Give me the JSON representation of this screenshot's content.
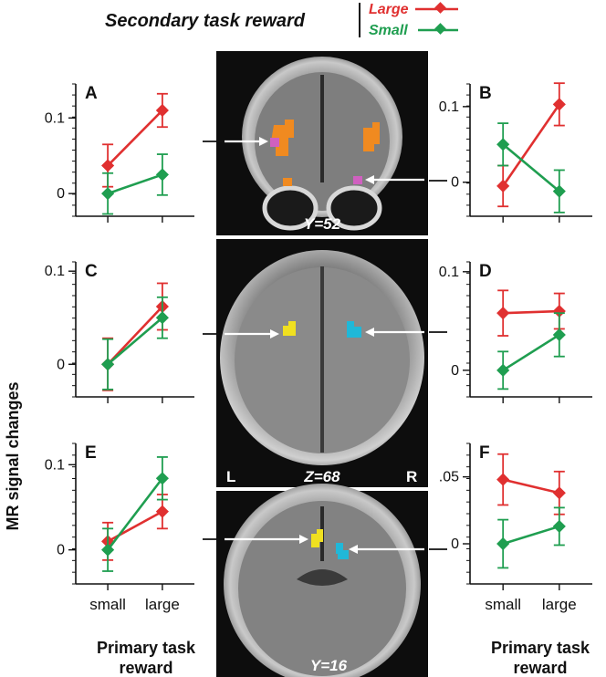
{
  "legend": {
    "title": "Secondary task reward",
    "entries": [
      {
        "name": "Large",
        "color": "#e03030"
      },
      {
        "name": "Small",
        "color": "#1f9e50"
      }
    ]
  },
  "y_axis_title": "MR signal changes",
  "x_axis_title": {
    "line1": "Primary task",
    "line2": "reward"
  },
  "categories": [
    "small",
    "large"
  ],
  "brain_slices": [
    {
      "label": "Y=52",
      "view": "coronal",
      "markers": [
        {
          "region": "left",
          "color": "#d060c0"
        },
        {
          "region": "right",
          "color": "#d060c0"
        }
      ],
      "clusters_color": "#f08a20"
    },
    {
      "label": "Z=68",
      "view": "axial",
      "left_label": "L",
      "right_label": "R",
      "markers": [
        {
          "region": "left",
          "color": "#f0e020"
        },
        {
          "region": "right",
          "color": "#20b8d8"
        }
      ]
    },
    {
      "label": "Y=16",
      "view": "coronal",
      "markers": [
        {
          "region": "left",
          "color": "#f0e020"
        },
        {
          "region": "right",
          "color": "#20b8d8"
        }
      ]
    }
  ],
  "chart_data": [
    {
      "panel": "A",
      "type": "line",
      "categories": [
        "small",
        "large"
      ],
      "ylim": [
        -0.03,
        0.145
      ],
      "ticks": [
        {
          "value": 0.1,
          "label": "0.1"
        },
        {
          "value": 0,
          "label": "0"
        }
      ],
      "series": [
        {
          "name": "Large",
          "color": "#e03030",
          "values": [
            0.037,
            0.11
          ],
          "errors": [
            0.028,
            0.022
          ]
        },
        {
          "name": "Small",
          "color": "#1f9e50",
          "values": [
            0.0,
            0.025
          ],
          "errors": [
            0.027,
            0.027
          ]
        }
      ]
    },
    {
      "panel": "B",
      "type": "line",
      "categories": [
        "small",
        "large"
      ],
      "ylim": [
        -0.045,
        0.13
      ],
      "ticks": [
        {
          "value": 0.1,
          "label": "0.1"
        },
        {
          "value": 0,
          "label": "0"
        }
      ],
      "series": [
        {
          "name": "Large",
          "color": "#e03030",
          "values": [
            -0.005,
            0.103
          ],
          "errors": [
            0.027,
            0.028
          ]
        },
        {
          "name": "Small",
          "color": "#1f9e50",
          "values": [
            0.05,
            -0.012
          ],
          "errors": [
            0.028,
            0.028
          ]
        }
      ]
    },
    {
      "panel": "C",
      "type": "line",
      "categories": [
        "small",
        "large"
      ],
      "ylim": [
        -0.035,
        0.11
      ],
      "ticks": [
        {
          "value": 0.1,
          "label": "0.1"
        },
        {
          "value": 0,
          "label": "0"
        }
      ],
      "series": [
        {
          "name": "Large",
          "color": "#e03030",
          "values": [
            0.0,
            0.062
          ],
          "errors": [
            0.028,
            0.025
          ]
        },
        {
          "name": "Small",
          "color": "#1f9e50",
          "values": [
            0.0,
            0.05
          ],
          "errors": [
            0.027,
            0.022
          ]
        }
      ]
    },
    {
      "panel": "D",
      "type": "line",
      "categories": [
        "small",
        "large"
      ],
      "ylim": [
        -0.027,
        0.11
      ],
      "ticks": [
        {
          "value": 0.1,
          "label": "0.1"
        },
        {
          "value": 0,
          "label": "0"
        }
      ],
      "series": [
        {
          "name": "Large",
          "color": "#e03030",
          "values": [
            0.058,
            0.06
          ],
          "errors": [
            0.023,
            0.018
          ]
        },
        {
          "name": "Small",
          "color": "#1f9e50",
          "values": [
            0.0,
            0.036
          ],
          "errors": [
            0.019,
            0.022
          ]
        }
      ]
    },
    {
      "panel": "E",
      "type": "line",
      "categories": [
        "small",
        "large"
      ],
      "ylim": [
        -0.04,
        0.125
      ],
      "ticks": [
        {
          "value": 0.1,
          "label": "0.1"
        },
        {
          "value": 0,
          "label": "0"
        }
      ],
      "series": [
        {
          "name": "Large",
          "color": "#e03030",
          "values": [
            0.01,
            0.045
          ],
          "errors": [
            0.022,
            0.02
          ]
        },
        {
          "name": "Small",
          "color": "#1f9e50",
          "values": [
            0.0,
            0.084
          ],
          "errors": [
            0.025,
            0.025
          ]
        }
      ]
    },
    {
      "panel": "F",
      "type": "line",
      "categories": [
        "small",
        "large"
      ],
      "ylim": [
        -0.03,
        0.075
      ],
      "ticks": [
        {
          "value": 0.05,
          "label": ".05"
        },
        {
          "value": 0,
          "label": "0"
        }
      ],
      "series": [
        {
          "name": "Large",
          "color": "#e03030",
          "values": [
            0.048,
            0.038
          ],
          "errors": [
            0.019,
            0.016
          ]
        },
        {
          "name": "Small",
          "color": "#1f9e50",
          "values": [
            0.0,
            0.013
          ],
          "errors": [
            0.018,
            0.014
          ]
        }
      ]
    }
  ]
}
